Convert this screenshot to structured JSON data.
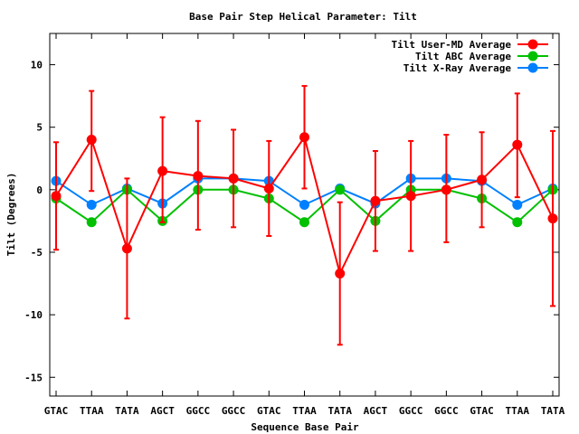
{
  "chart_data": {
    "type": "line",
    "title": "Base Pair Step Helical Parameter: Tilt",
    "xlabel": "Sequence Base Pair",
    "ylabel": "Tilt (Degrees)",
    "categories": [
      "GTAC",
      "TTAA",
      "TATA",
      "AGCT",
      "GGCC",
      "GGCC",
      "GTAC",
      "TTAA",
      "TATA",
      "AGCT",
      "GGCC",
      "GGCC",
      "GTAC",
      "TTAA",
      "TATA"
    ],
    "ylim": [
      -16.5,
      12.5
    ],
    "yticks": [
      -15,
      -10,
      -5,
      0,
      5,
      10
    ],
    "grid": false,
    "legend_position": "top-right",
    "series": [
      {
        "name": "Tilt User-MD Average",
        "color": "#ff0000",
        "values": [
          -0.5,
          4.0,
          -4.7,
          1.5,
          1.1,
          0.9,
          0.1,
          4.2,
          -6.7,
          -0.9,
          -0.5,
          0.0,
          0.8,
          3.6,
          -2.3
        ],
        "error_low": [
          -4.8,
          -0.1,
          -10.3,
          -2.6,
          -3.2,
          -3.0,
          -3.7,
          0.1,
          -12.4,
          -4.9,
          -4.9,
          -4.2,
          -3.0,
          -0.6,
          -9.3
        ],
        "error_high": [
          3.8,
          7.9,
          0.9,
          5.8,
          5.5,
          4.8,
          3.9,
          8.3,
          -1.0,
          3.1,
          3.9,
          4.4,
          4.6,
          7.7,
          4.7
        ]
      },
      {
        "name": "Tilt ABC Average",
        "color": "#00c000",
        "values": [
          -0.7,
          -2.6,
          0.0,
          -2.5,
          0.0,
          0.0,
          -0.7,
          -2.6,
          0.0,
          -2.5,
          0.0,
          0.0,
          -0.7,
          -2.6,
          0.0
        ]
      },
      {
        "name": "Tilt X-Ray Average",
        "color": "#0080ff",
        "values": [
          0.7,
          -1.2,
          0.1,
          -1.1,
          0.9,
          0.9,
          0.7,
          -1.2,
          0.1,
          -1.1,
          0.9,
          0.9,
          0.7,
          -1.2,
          0.1
        ]
      }
    ]
  }
}
